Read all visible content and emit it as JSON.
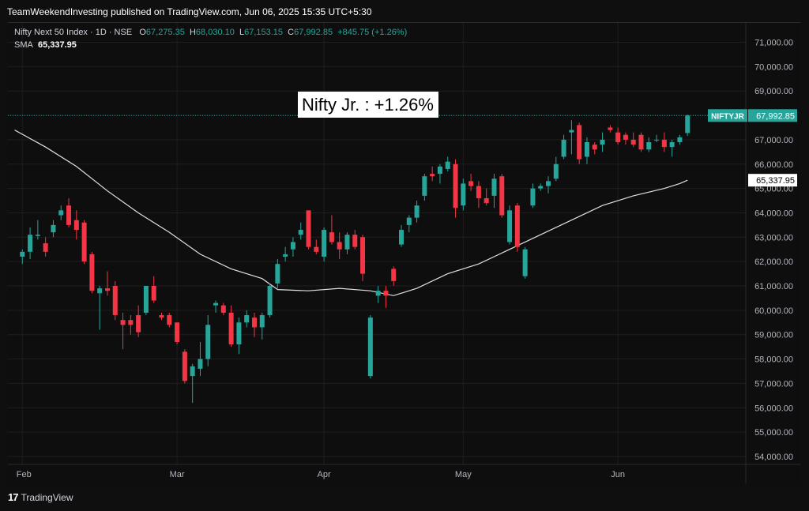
{
  "publish_line": "TeamWeekendInvesting published on TradingView.com, Jun 06, 2025 15:35 UTC+5:30",
  "legend": {
    "symbol": "Nifty Next 50 Index · 1D · NSE",
    "o_label": "O",
    "o_value": "67,275.35",
    "h_label": "H",
    "h_value": "68,030.10",
    "l_label": "L",
    "l_value": "67,153.15",
    "c_label": "C",
    "c_value": "67,992.85",
    "change": "+845.75 (+1.26%)",
    "sma_label": "SMA",
    "sma_value": "65,337.95"
  },
  "annotation": "Nifty Jr. : +1.26%",
  "footer": {
    "brand": "TradingView",
    "logo": "tradingview-logo-icon"
  },
  "colors": {
    "up": "#26a69a",
    "down": "#f23645",
    "sma": "#e0e0e0",
    "bg": "#0e0e0e",
    "grid": "#1e1e1e"
  },
  "chart_data": {
    "type": "candlestick",
    "y_ticks": [
      "54,000.00",
      "55,000.00",
      "56,000.00",
      "57,000.00",
      "58,000.00",
      "59,000.00",
      "60,000.00",
      "61,000.00",
      "62,000.00",
      "63,000.00",
      "64,000.00",
      "65,000.00",
      "66,000.00",
      "67,000.00",
      "68,000.00",
      "69,000.00",
      "70,000.00",
      "71,000.00"
    ],
    "ylim": [
      53300,
      71800
    ],
    "x_labels": [
      {
        "label": "Feb",
        "index": 0
      },
      {
        "label": "Mar",
        "index": 20
      },
      {
        "label": "Apr",
        "index": 39
      },
      {
        "label": "May",
        "index": 57
      },
      {
        "label": "Jun",
        "index": 77
      }
    ],
    "x_start_index": -1,
    "last_price": {
      "symbol": "NIFTYJR",
      "value": "67,992.85",
      "y": 67992.85
    },
    "sma_price": {
      "value": "65,337.95",
      "y": 65337.95
    },
    "candles": [
      {
        "o": 62200,
        "h": 62500,
        "l": 61900,
        "c": 62400
      },
      {
        "o": 62400,
        "h": 63400,
        "l": 62100,
        "c": 63100
      },
      {
        "o": 63050,
        "h": 63700,
        "l": 62900,
        "c": 63100
      },
      {
        "o": 62750,
        "h": 63000,
        "l": 62200,
        "c": 62400
      },
      {
        "o": 63200,
        "h": 63700,
        "l": 63000,
        "c": 63500
      },
      {
        "o": 63900,
        "h": 64300,
        "l": 63700,
        "c": 64100
      },
      {
        "o": 64300,
        "h": 64600,
        "l": 63400,
        "c": 63500
      },
      {
        "o": 63700,
        "h": 64100,
        "l": 62900,
        "c": 63300
      },
      {
        "o": 63600,
        "h": 63700,
        "l": 61900,
        "c": 62000
      },
      {
        "o": 62300,
        "h": 62400,
        "l": 60700,
        "c": 60800
      },
      {
        "o": 60700,
        "h": 61000,
        "l": 59200,
        "c": 60900
      },
      {
        "o": 60900,
        "h": 61600,
        "l": 60600,
        "c": 60800
      },
      {
        "o": 61000,
        "h": 61200,
        "l": 59600,
        "c": 59800
      },
      {
        "o": 59600,
        "h": 59900,
        "l": 58400,
        "c": 59400
      },
      {
        "o": 59600,
        "h": 59800,
        "l": 59000,
        "c": 59400
      },
      {
        "o": 59800,
        "h": 60200,
        "l": 58900,
        "c": 59100
      },
      {
        "o": 59900,
        "h": 61000,
        "l": 59800,
        "c": 61000
      },
      {
        "o": 61000,
        "h": 61400,
        "l": 60300,
        "c": 60400
      },
      {
        "o": 59800,
        "h": 59900,
        "l": 59600,
        "c": 59700
      },
      {
        "o": 59800,
        "h": 59900,
        "l": 59300,
        "c": 59400
      },
      {
        "o": 59500,
        "h": 59500,
        "l": 58600,
        "c": 58700
      },
      {
        "o": 58300,
        "h": 58400,
        "l": 57000,
        "c": 57100
      },
      {
        "o": 57300,
        "h": 57800,
        "l": 56200,
        "c": 57700
      },
      {
        "o": 57600,
        "h": 58700,
        "l": 57300,
        "c": 58000
      },
      {
        "o": 58000,
        "h": 59800,
        "l": 57700,
        "c": 59400
      },
      {
        "o": 60200,
        "h": 60400,
        "l": 59900,
        "c": 60300
      },
      {
        "o": 60200,
        "h": 60300,
        "l": 59800,
        "c": 59900
      },
      {
        "o": 59900,
        "h": 60200,
        "l": 58500,
        "c": 58600
      },
      {
        "o": 58600,
        "h": 59700,
        "l": 58200,
        "c": 59500
      },
      {
        "o": 59500,
        "h": 60000,
        "l": 59300,
        "c": 59800
      },
      {
        "o": 59700,
        "h": 59900,
        "l": 58900,
        "c": 59300
      },
      {
        "o": 59300,
        "h": 59900,
        "l": 58800,
        "c": 59800
      },
      {
        "o": 59800,
        "h": 61100,
        "l": 59700,
        "c": 61000
      },
      {
        "o": 61100,
        "h": 62100,
        "l": 60900,
        "c": 61900
      },
      {
        "o": 62200,
        "h": 62600,
        "l": 62000,
        "c": 62300
      },
      {
        "o": 62500,
        "h": 63000,
        "l": 62200,
        "c": 62800
      },
      {
        "o": 63100,
        "h": 63600,
        "l": 62900,
        "c": 63300
      },
      {
        "o": 64100,
        "h": 64100,
        "l": 62500,
        "c": 62600
      },
      {
        "o": 62600,
        "h": 62900,
        "l": 62300,
        "c": 62400
      },
      {
        "o": 62200,
        "h": 63400,
        "l": 62000,
        "c": 63300
      },
      {
        "o": 63200,
        "h": 63900,
        "l": 62700,
        "c": 62800
      },
      {
        "o": 62800,
        "h": 63200,
        "l": 62100,
        "c": 62500
      },
      {
        "o": 62500,
        "h": 63200,
        "l": 62300,
        "c": 63100
      },
      {
        "o": 63100,
        "h": 63300,
        "l": 62500,
        "c": 62600
      },
      {
        "o": 63000,
        "h": 63100,
        "l": 61200,
        "c": 61500
      },
      {
        "o": 57300,
        "h": 59800,
        "l": 57200,
        "c": 59700
      },
      {
        "o": 60600,
        "h": 61000,
        "l": 60300,
        "c": 60800
      },
      {
        "o": 60800,
        "h": 61000,
        "l": 60100,
        "c": 60600
      },
      {
        "o": 61700,
        "h": 61800,
        "l": 61000,
        "c": 61200
      },
      {
        "o": 62700,
        "h": 63500,
        "l": 62600,
        "c": 63300
      },
      {
        "o": 63500,
        "h": 63900,
        "l": 63200,
        "c": 63800
      },
      {
        "o": 63800,
        "h": 64500,
        "l": 63600,
        "c": 64300
      },
      {
        "o": 64700,
        "h": 65600,
        "l": 64500,
        "c": 65500
      },
      {
        "o": 65600,
        "h": 65900,
        "l": 65300,
        "c": 65500
      },
      {
        "o": 65600,
        "h": 66000,
        "l": 65200,
        "c": 65900
      },
      {
        "o": 65800,
        "h": 66300,
        "l": 65700,
        "c": 66100
      },
      {
        "o": 66000,
        "h": 66200,
        "l": 63800,
        "c": 64200
      },
      {
        "o": 64300,
        "h": 65400,
        "l": 64100,
        "c": 65200
      },
      {
        "o": 65300,
        "h": 65600,
        "l": 64900,
        "c": 65100
      },
      {
        "o": 65100,
        "h": 65300,
        "l": 64200,
        "c": 64600
      },
      {
        "o": 64600,
        "h": 65000,
        "l": 64300,
        "c": 64400
      },
      {
        "o": 64700,
        "h": 65600,
        "l": 64200,
        "c": 65400
      },
      {
        "o": 65500,
        "h": 65600,
        "l": 63800,
        "c": 63900
      },
      {
        "o": 62800,
        "h": 64300,
        "l": 62700,
        "c": 64100
      },
      {
        "o": 64300,
        "h": 64400,
        "l": 62400,
        "c": 62600
      },
      {
        "o": 61400,
        "h": 62600,
        "l": 61300,
        "c": 62500
      },
      {
        "o": 64300,
        "h": 65200,
        "l": 64200,
        "c": 65000
      },
      {
        "o": 65000,
        "h": 65200,
        "l": 64900,
        "c": 65100
      },
      {
        "o": 65100,
        "h": 65500,
        "l": 64800,
        "c": 65300
      },
      {
        "o": 65400,
        "h": 66300,
        "l": 65300,
        "c": 66000
      },
      {
        "o": 66300,
        "h": 67200,
        "l": 66200,
        "c": 67000
      },
      {
        "o": 67300,
        "h": 67800,
        "l": 66400,
        "c": 67400
      },
      {
        "o": 67600,
        "h": 67700,
        "l": 66000,
        "c": 66200
      },
      {
        "o": 66300,
        "h": 67100,
        "l": 66000,
        "c": 66900
      },
      {
        "o": 66800,
        "h": 66900,
        "l": 66400,
        "c": 66600
      },
      {
        "o": 66800,
        "h": 67300,
        "l": 66500,
        "c": 67000
      },
      {
        "o": 67500,
        "h": 67600,
        "l": 67300,
        "c": 67400
      },
      {
        "o": 67300,
        "h": 67500,
        "l": 66800,
        "c": 66900
      },
      {
        "o": 67200,
        "h": 67300,
        "l": 66800,
        "c": 67000
      },
      {
        "o": 67000,
        "h": 67300,
        "l": 66700,
        "c": 66800
      },
      {
        "o": 67200,
        "h": 67300,
        "l": 66500,
        "c": 66600
      },
      {
        "o": 66600,
        "h": 67100,
        "l": 66500,
        "c": 66900
      },
      {
        "o": 67000,
        "h": 67200,
        "l": 66900,
        "c": 67000
      },
      {
        "o": 67000,
        "h": 67300,
        "l": 66500,
        "c": 66700
      },
      {
        "o": 66700,
        "h": 67000,
        "l": 66300,
        "c": 66900
      },
      {
        "o": 66900,
        "h": 67200,
        "l": 66800,
        "c": 67100
      },
      {
        "o": 67275.35,
        "h": 68030.1,
        "l": 67153.15,
        "c": 67992.85
      }
    ],
    "sma": [
      {
        "i": -1,
        "v": 67400
      },
      {
        "i": 3,
        "v": 66700
      },
      {
        "i": 7,
        "v": 65900
      },
      {
        "i": 11,
        "v": 64900
      },
      {
        "i": 15,
        "v": 64000
      },
      {
        "i": 19,
        "v": 63200
      },
      {
        "i": 23,
        "v": 62300
      },
      {
        "i": 27,
        "v": 61700
      },
      {
        "i": 31,
        "v": 61300
      },
      {
        "i": 33,
        "v": 60850
      },
      {
        "i": 37,
        "v": 60800
      },
      {
        "i": 41,
        "v": 60900
      },
      {
        "i": 45,
        "v": 60800
      },
      {
        "i": 48,
        "v": 60600
      },
      {
        "i": 51,
        "v": 60900
      },
      {
        "i": 55,
        "v": 61500
      },
      {
        "i": 59,
        "v": 61900
      },
      {
        "i": 63,
        "v": 62500
      },
      {
        "i": 67,
        "v": 63100
      },
      {
        "i": 71,
        "v": 63700
      },
      {
        "i": 75,
        "v": 64300
      },
      {
        "i": 79,
        "v": 64700
      },
      {
        "i": 83,
        "v": 65000
      },
      {
        "i": 85,
        "v": 65200
      },
      {
        "i": 86,
        "v": 65337.95
      }
    ]
  }
}
